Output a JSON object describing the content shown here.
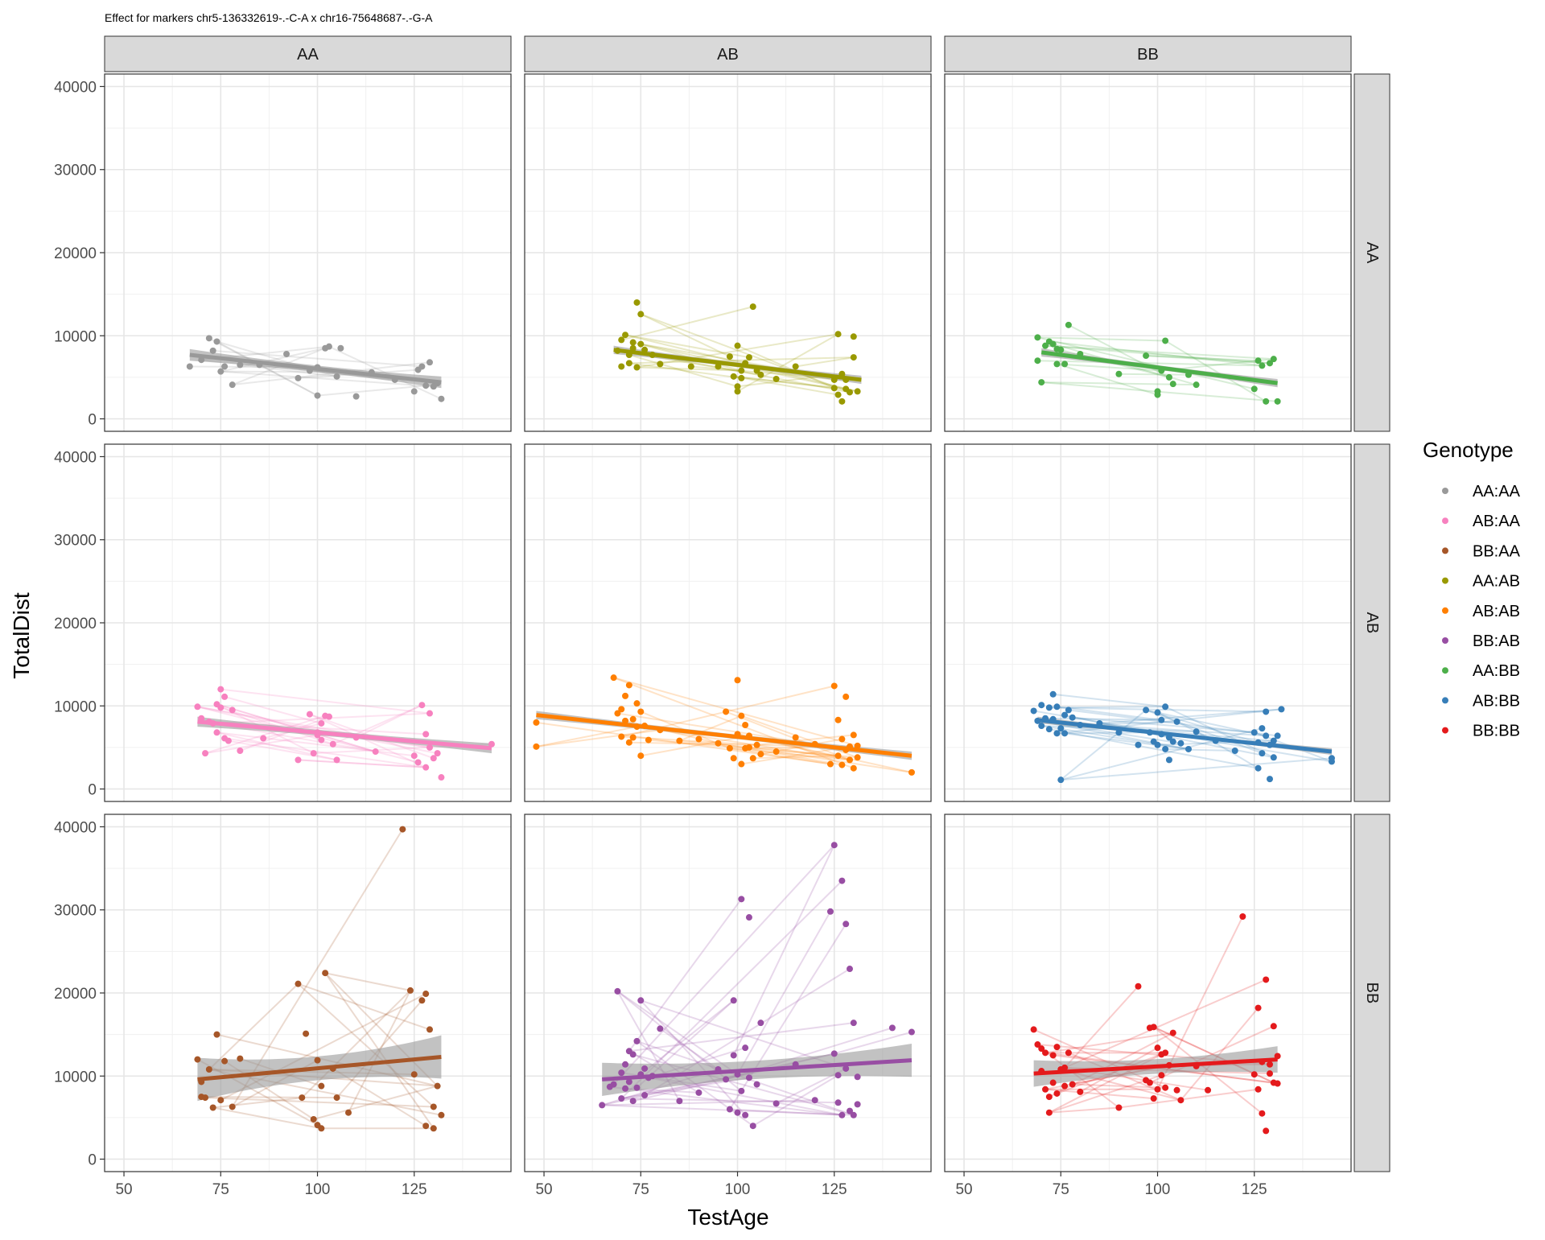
{
  "chart_data": {
    "type": "scatter",
    "title": "Effect for markers chr5-136332619-.-C-A x chr16-75648687-.-G-A",
    "xlabel": "TestAge",
    "ylabel": "TotalDist",
    "xlim": [
      45,
      150
    ],
    "ylim": [
      -1500,
      41500
    ],
    "x_ticks": [
      50,
      75,
      100,
      125
    ],
    "y_ticks": [
      0,
      10000,
      20000,
      30000,
      40000
    ],
    "col_facets": [
      "AA",
      "AB",
      "BB"
    ],
    "row_facets": [
      "AA",
      "AB",
      "BB"
    ],
    "grid": true,
    "legend": {
      "title": "Genotype",
      "position": "right",
      "entries": [
        "AA:AA",
        "AB:AA",
        "BB:AA",
        "AA:AB",
        "AB:AB",
        "BB:AB",
        "AA:BB",
        "AB:BB",
        "BB:BB"
      ]
    },
    "series": [
      {
        "name": "AA:AA",
        "color": "#999999",
        "row": 0,
        "col": 0,
        "trend": {
          "x": [
            67,
            132
          ],
          "y": [
            7700,
            4400
          ]
        },
        "ci": 700,
        "x": [
          67,
          70,
          72,
          73,
          74,
          75,
          76,
          78,
          80,
          85,
          92,
          95,
          98,
          100,
          100,
          102,
          103,
          105,
          106,
          110,
          114,
          120,
          125,
          126,
          127,
          128,
          129,
          130,
          131,
          132
        ],
        "y": [
          6300,
          7100,
          9700,
          8200,
          9300,
          5700,
          6300,
          4100,
          6500,
          6500,
          7800,
          4900,
          5800,
          2800,
          6200,
          8500,
          8700,
          5100,
          8500,
          2700,
          5600,
          4700,
          3300,
          5900,
          6300,
          4000,
          6800,
          3900,
          4300,
          2400
        ]
      },
      {
        "name": "AA:AB",
        "color": "#999900",
        "row": 0,
        "col": 1,
        "trend": {
          "x": [
            68,
            132
          ],
          "y": [
            8300,
            4700
          ]
        },
        "ci": 500,
        "x": [
          69,
          70,
          70,
          71,
          72,
          72,
          73,
          73,
          74,
          74,
          75,
          75,
          76,
          78,
          80,
          88,
          95,
          98,
          99,
          100,
          100,
          100,
          101,
          101,
          102,
          103,
          104,
          105,
          106,
          110,
          115,
          125,
          125,
          126,
          126,
          127,
          127,
          128,
          128,
          129,
          130,
          130,
          131
        ],
        "y": [
          8200,
          6300,
          9500,
          10100,
          7700,
          6700,
          9200,
          8500,
          14000,
          6200,
          12600,
          9000,
          8300,
          7700,
          6600,
          6300,
          6300,
          7500,
          5100,
          3900,
          8800,
          3300,
          4900,
          5800,
          6700,
          7400,
          13500,
          5800,
          5300,
          4800,
          6300,
          4700,
          3700,
          10200,
          2900,
          2100,
          5400,
          3600,
          4700,
          3200,
          9900,
          7400,
          3300
        ]
      },
      {
        "name": "AA:BB",
        "color": "#4DAF4A",
        "row": 0,
        "col": 2,
        "trend": {
          "x": [
            70,
            131
          ],
          "y": [
            8000,
            4300
          ]
        },
        "ci": 500,
        "x": [
          69,
          69,
          70,
          71,
          72,
          73,
          74,
          74,
          75,
          76,
          77,
          80,
          90,
          97,
          100,
          100,
          101,
          102,
          103,
          104,
          108,
          110,
          125,
          126,
          127,
          128,
          129,
          130,
          131
        ],
        "y": [
          9800,
          7000,
          4400,
          8800,
          9300,
          9000,
          8400,
          6600,
          8300,
          6600,
          11300,
          7800,
          5400,
          7600,
          3300,
          2900,
          5800,
          9400,
          5000,
          4200,
          5300,
          4100,
          3600,
          7000,
          6400,
          2100,
          6700,
          7200,
          2100
        ]
      },
      {
        "name": "AB:AA",
        "color": "#F781BF",
        "row": 1,
        "col": 0,
        "trend": {
          "x": [
            69,
            145
          ],
          "y": [
            8100,
            4900
          ]
        },
        "ci": 600,
        "x": [
          69,
          70,
          71,
          72,
          73,
          74,
          74,
          75,
          75,
          76,
          76,
          77,
          78,
          80,
          86,
          95,
          98,
          99,
          100,
          100,
          101,
          101,
          102,
          103,
          104,
          105,
          110,
          115,
          125,
          126,
          127,
          128,
          128,
          129,
          129,
          130,
          131,
          132,
          145
        ],
        "y": [
          9900,
          8500,
          4300,
          8100,
          7900,
          10200,
          6800,
          12000,
          9800,
          6100,
          11100,
          5800,
          9500,
          4600,
          6100,
          3500,
          9000,
          4300,
          6800,
          6500,
          7900,
          5900,
          8800,
          8700,
          5400,
          3500,
          6200,
          4500,
          4000,
          3200,
          10100,
          6600,
          2600,
          9100,
          5000,
          3700,
          4300,
          1400,
          5400
        ]
      },
      {
        "name": "AB:AB",
        "color": "#FF7F00",
        "row": 1,
        "col": 1,
        "trend": {
          "x": [
            48,
            145
          ],
          "y": [
            8900,
            4000
          ]
        },
        "ci": 500,
        "x": [
          48,
          48,
          68,
          69,
          70,
          70,
          71,
          71,
          72,
          72,
          73,
          73,
          74,
          74,
          75,
          75,
          76,
          77,
          80,
          85,
          90,
          95,
          97,
          98,
          99,
          100,
          100,
          101,
          101,
          102,
          102,
          103,
          103,
          104,
          105,
          106,
          110,
          115,
          120,
          124,
          125,
          126,
          126,
          127,
          127,
          128,
          128,
          129,
          129,
          130,
          130,
          131,
          131,
          145
        ],
        "y": [
          8000,
          5100,
          13400,
          9100,
          6300,
          9600,
          8200,
          11200,
          5600,
          12500,
          8400,
          6200,
          10300,
          7500,
          4000,
          9300,
          7600,
          5900,
          7100,
          5800,
          6000,
          5500,
          9300,
          4900,
          3700,
          6600,
          13100,
          3000,
          8800,
          4900,
          7700,
          5000,
          6400,
          3700,
          5300,
          4200,
          4500,
          6200,
          5400,
          3000,
          12400,
          8300,
          4000,
          6000,
          2900,
          4700,
          11100,
          5100,
          3500,
          6500,
          2500,
          5200,
          3800,
          2000
        ]
      },
      {
        "name": "AB:BB",
        "color": "#377EB8",
        "row": 1,
        "col": 2,
        "trend": {
          "x": [
            69,
            145
          ],
          "y": [
            8300,
            4500
          ]
        },
        "ci": 400,
        "x": [
          68,
          69,
          70,
          70,
          71,
          72,
          72,
          73,
          73,
          74,
          74,
          75,
          75,
          76,
          76,
          77,
          78,
          80,
          85,
          90,
          95,
          97,
          98,
          99,
          100,
          100,
          101,
          101,
          102,
          102,
          103,
          103,
          104,
          105,
          106,
          108,
          110,
          115,
          120,
          125,
          126,
          126,
          127,
          127,
          128,
          128,
          129,
          129,
          130,
          130,
          131,
          132,
          145,
          145
        ],
        "y": [
          9400,
          8200,
          10100,
          7600,
          8500,
          7200,
          9800,
          8400,
          11400,
          6700,
          9900,
          7300,
          1100,
          8900,
          6700,
          9500,
          8600,
          7700,
          7900,
          6800,
          5300,
          9500,
          6800,
          5700,
          9200,
          5300,
          6600,
          8300,
          9900,
          4800,
          6200,
          3500,
          5700,
          8100,
          5500,
          4800,
          6900,
          5800,
          4600,
          6800,
          2500,
          5600,
          7300,
          4300,
          6400,
          9300,
          1200,
          5300,
          5800,
          3800,
          6400,
          9600,
          3700,
          3300
        ]
      },
      {
        "name": "BB:AA",
        "color": "#A65628",
        "row": 2,
        "col": 0,
        "trend": {
          "x": [
            69,
            132
          ],
          "y": [
            9600,
            12300
          ]
        },
        "ci": 2600,
        "x": [
          69,
          70,
          70,
          71,
          72,
          73,
          74,
          75,
          76,
          78,
          80,
          95,
          96,
          97,
          99,
          100,
          100,
          101,
          101,
          102,
          104,
          105,
          108,
          122,
          124,
          125,
          127,
          128,
          128,
          129,
          130,
          130,
          131,
          132
        ],
        "y": [
          12000,
          9300,
          7500,
          7400,
          10800,
          6200,
          15000,
          7100,
          11800,
          6300,
          12100,
          21100,
          7400,
          15100,
          4800,
          11900,
          4100,
          8800,
          3700,
          22400,
          10900,
          7400,
          5600,
          39700,
          20300,
          10200,
          19100,
          19900,
          4000,
          15600,
          6300,
          3700,
          8800,
          5300
        ]
      },
      {
        "name": "BB:AB",
        "color": "#984EA3",
        "row": 2,
        "col": 1,
        "trend": {
          "x": [
            65,
            145
          ],
          "y": [
            9600,
            11900
          ]
        },
        "ci": 2000,
        "x": [
          65,
          67,
          68,
          69,
          70,
          70,
          71,
          71,
          72,
          72,
          73,
          73,
          74,
          74,
          75,
          75,
          76,
          76,
          77,
          78,
          80,
          85,
          90,
          95,
          97,
          98,
          99,
          99,
          100,
          100,
          101,
          101,
          102,
          102,
          103,
          103,
          104,
          105,
          106,
          110,
          115,
          120,
          124,
          125,
          125,
          126,
          126,
          127,
          127,
          128,
          128,
          129,
          129,
          130,
          130,
          131,
          131,
          140,
          145
        ],
        "y": [
          6500,
          8700,
          9000,
          20200,
          10400,
          7300,
          8500,
          11400,
          9300,
          13000,
          12600,
          7000,
          14200,
          8600,
          19100,
          10200,
          10900,
          7700,
          9800,
          10000,
          15700,
          7000,
          8000,
          10800,
          9600,
          6000,
          19100,
          12500,
          10200,
          5600,
          31300,
          8200,
          13400,
          5300,
          29100,
          9800,
          4000,
          9000,
          16400,
          6700,
          11400,
          7100,
          29800,
          37800,
          12700,
          10100,
          6800,
          33500,
          5300,
          28300,
          10900,
          5800,
          22900,
          16400,
          5300,
          6600,
          9900,
          15800,
          15300
        ]
      },
      {
        "name": "BB:BB",
        "color": "#E41A1C",
        "row": 2,
        "col": 2,
        "trend": {
          "x": [
            68,
            131
          ],
          "y": [
            10300,
            12000
          ]
        },
        "ci": 1600,
        "x": [
          68,
          69,
          70,
          70,
          71,
          71,
          72,
          72,
          73,
          73,
          74,
          74,
          75,
          76,
          76,
          77,
          78,
          80,
          90,
          95,
          97,
          98,
          98,
          99,
          99,
          100,
          100,
          101,
          101,
          102,
          102,
          103,
          104,
          105,
          106,
          110,
          113,
          122,
          125,
          126,
          126,
          127,
          127,
          128,
          128,
          129,
          129,
          130,
          130,
          131,
          131
        ],
        "y": [
          15600,
          13800,
          13300,
          10600,
          8400,
          12800,
          7500,
          5600,
          9200,
          12500,
          7900,
          13500,
          10800,
          11000,
          8800,
          12800,
          9000,
          8100,
          6200,
          20800,
          9500,
          15800,
          9200,
          15900,
          7300,
          13400,
          8400,
          12600,
          10100,
          8600,
          12800,
          11300,
          15200,
          8300,
          7100,
          11200,
          8300,
          29200,
          10200,
          18200,
          8400,
          11700,
          5500,
          21600,
          3400,
          10300,
          11400,
          16000,
          9200,
          12400,
          9100
        ]
      }
    ]
  }
}
